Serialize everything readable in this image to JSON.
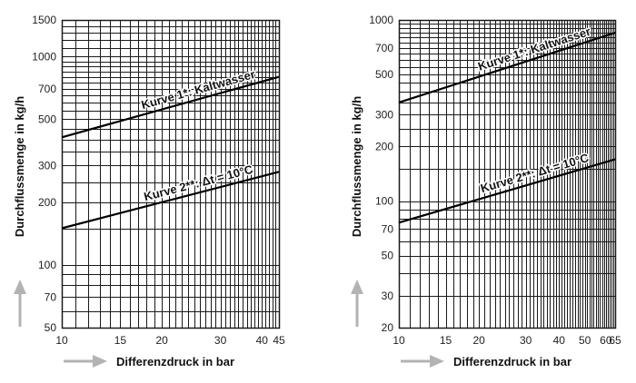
{
  "colors": {
    "grid": "#1a1a1a",
    "curve": "#000000",
    "arrow": "#b3b3b3",
    "text": "#111111"
  },
  "chart_data": [
    {
      "type": "line",
      "scale": "log-log",
      "grid": true,
      "xlabel": "Differenzdruck in bar",
      "ylabel": "Durchflussmenge in kg/h",
      "xlim": [
        10,
        45
      ],
      "ylim": [
        50,
        1500
      ],
      "x_ticks": [
        10,
        15,
        20,
        30,
        40,
        45
      ],
      "x_tick_labels": [
        "10",
        "15",
        "20",
        "30",
        "40",
        "45"
      ],
      "y_ticks": [
        50,
        70,
        100,
        200,
        300,
        500,
        700,
        1000,
        1500
      ],
      "y_tick_labels": [
        "50",
        "70",
        "100",
        "200",
        "300",
        "500",
        "700",
        "1000",
        "1500"
      ],
      "series": [
        {
          "name": "Kurve 1*: Kaltwasser",
          "x": [
            10,
            45
          ],
          "y": [
            410,
            800
          ]
        },
        {
          "name": "Kurve 2**: Δt = 10°C",
          "x": [
            10,
            45
          ],
          "y": [
            150,
            280
          ]
        }
      ]
    },
    {
      "type": "line",
      "scale": "log-log",
      "grid": true,
      "xlabel": "Differenzdruck in bar",
      "ylabel": "Durchflussmenge in kg/h",
      "xlim": [
        10,
        65
      ],
      "ylim": [
        20,
        1000
      ],
      "x_ticks": [
        10,
        15,
        20,
        30,
        40,
        50,
        60,
        65
      ],
      "x_tick_labels": [
        "10",
        "15",
        "20",
        "30",
        "40",
        "50",
        "60",
        "65"
      ],
      "y_ticks": [
        20,
        30,
        50,
        70,
        100,
        200,
        300,
        500,
        700,
        1000
      ],
      "y_tick_labels": [
        "20",
        "30",
        "50",
        "70",
        "100",
        "200",
        "300",
        "500",
        "700",
        "1000"
      ],
      "series": [
        {
          "name": "Kurve 1*: Kaltwasser",
          "x": [
            10,
            65
          ],
          "y": [
            350,
            850
          ]
        },
        {
          "name": "Kurve 2**: Δt = 10°C",
          "x": [
            10,
            65
          ],
          "y": [
            76,
            170
          ]
        }
      ]
    }
  ]
}
